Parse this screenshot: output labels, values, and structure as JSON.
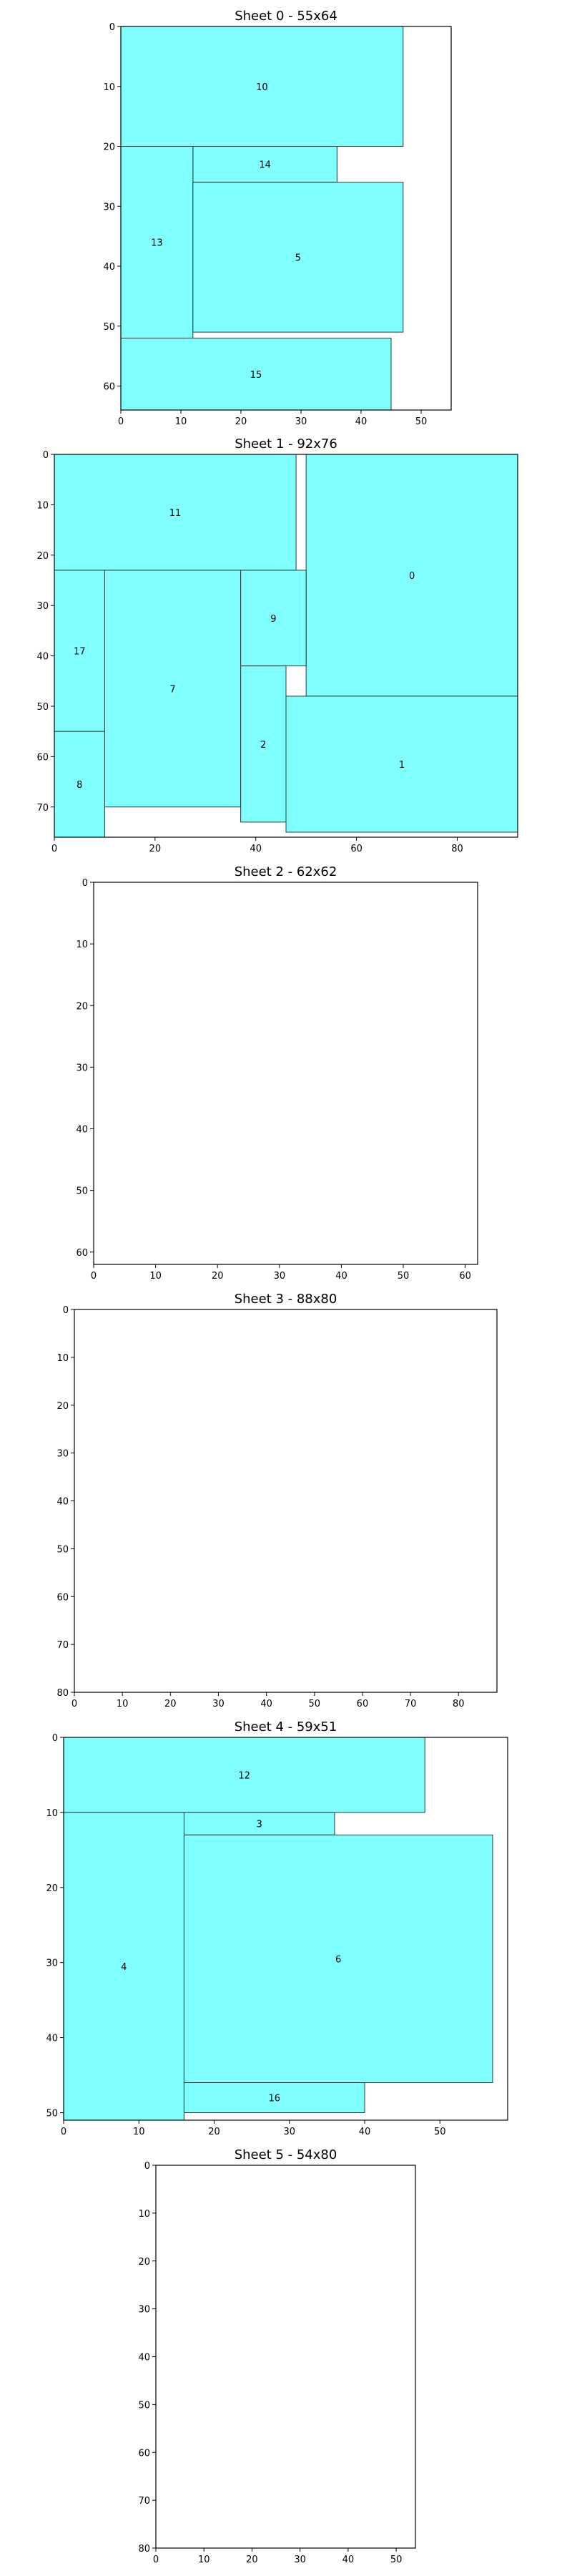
{
  "colors": {
    "piece_fill": "#80ffff",
    "piece_stroke": "#1f3f3f",
    "frame": "#000000",
    "background": "#ffffff"
  },
  "chart_data": [
    {
      "type": "rectangle-layout",
      "title": "Sheet 0 - 55x64",
      "width": 55,
      "height": 64,
      "y_inverted": true,
      "xticks": [
        0,
        10,
        20,
        30,
        40,
        50
      ],
      "yticks": [
        0,
        10,
        20,
        30,
        40,
        50,
        60
      ],
      "pieces": [
        {
          "label": "10",
          "x": 0,
          "y": 0,
          "w": 47,
          "h": 20
        },
        {
          "label": "14",
          "x": 12,
          "y": 20,
          "w": 24,
          "h": 6
        },
        {
          "label": "13",
          "x": 0,
          "y": 20,
          "w": 12,
          "h": 32
        },
        {
          "label": "5",
          "x": 12,
          "y": 26,
          "w": 35,
          "h": 25
        },
        {
          "label": "15",
          "x": 0,
          "y": 52,
          "w": 45,
          "h": 12
        }
      ]
    },
    {
      "type": "rectangle-layout",
      "title": "Sheet 1 - 92x76",
      "width": 92,
      "height": 76,
      "y_inverted": true,
      "xticks": [
        0,
        20,
        40,
        60,
        80
      ],
      "yticks": [
        0,
        10,
        20,
        30,
        40,
        50,
        60,
        70
      ],
      "pieces": [
        {
          "label": "11",
          "x": 0,
          "y": 0,
          "w": 48,
          "h": 23
        },
        {
          "label": "0",
          "x": 50,
          "y": 0,
          "w": 42,
          "h": 48
        },
        {
          "label": "17",
          "x": 0,
          "y": 23,
          "w": 10,
          "h": 32
        },
        {
          "label": "7",
          "x": 10,
          "y": 23,
          "w": 27,
          "h": 47
        },
        {
          "label": "9",
          "x": 37,
          "y": 23,
          "w": 13,
          "h": 19
        },
        {
          "label": "2",
          "x": 37,
          "y": 42,
          "w": 9,
          "h": 31
        },
        {
          "label": "1",
          "x": 46,
          "y": 48,
          "w": 46,
          "h": 27
        },
        {
          "label": "8",
          "x": 0,
          "y": 55,
          "w": 10,
          "h": 21
        }
      ]
    },
    {
      "type": "rectangle-layout",
      "title": "Sheet 2 - 62x62",
      "width": 62,
      "height": 62,
      "y_inverted": true,
      "xticks": [
        0,
        10,
        20,
        30,
        40,
        50,
        60
      ],
      "yticks": [
        0,
        10,
        20,
        30,
        40,
        50,
        60
      ],
      "pieces": []
    },
    {
      "type": "rectangle-layout",
      "title": "Sheet 3 - 88x80",
      "width": 88,
      "height": 80,
      "y_inverted": true,
      "xticks": [
        0,
        10,
        20,
        30,
        40,
        50,
        60,
        70,
        80
      ],
      "yticks": [
        0,
        10,
        20,
        30,
        40,
        50,
        60,
        70,
        80
      ],
      "pieces": []
    },
    {
      "type": "rectangle-layout",
      "title": "Sheet 4 - 59x51",
      "width": 59,
      "height": 51,
      "y_inverted": true,
      "xticks": [
        0,
        10,
        20,
        30,
        40,
        50
      ],
      "yticks": [
        0,
        10,
        20,
        30,
        40,
        50
      ],
      "pieces": [
        {
          "label": "12",
          "x": 0,
          "y": 0,
          "w": 48,
          "h": 10
        },
        {
          "label": "3",
          "x": 16,
          "y": 10,
          "w": 20,
          "h": 3
        },
        {
          "label": "4",
          "x": 0,
          "y": 10,
          "w": 16,
          "h": 41
        },
        {
          "label": "6",
          "x": 16,
          "y": 13,
          "w": 41,
          "h": 33
        },
        {
          "label": "16",
          "x": 16,
          "y": 46,
          "w": 24,
          "h": 4
        }
      ]
    },
    {
      "type": "rectangle-layout",
      "title": "Sheet 5 - 54x80",
      "width": 54,
      "height": 80,
      "y_inverted": true,
      "xticks": [
        0,
        10,
        20,
        30,
        40,
        50
      ],
      "yticks": [
        0,
        10,
        20,
        30,
        40,
        50,
        60,
        70,
        80
      ],
      "pieces": []
    }
  ]
}
